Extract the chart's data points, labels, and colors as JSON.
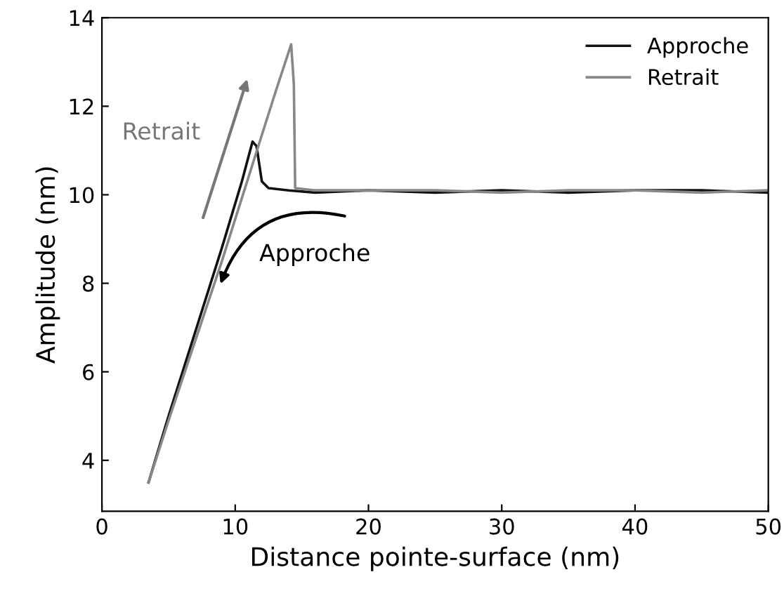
{
  "chart_data": {
    "type": "line",
    "xlabel": "Distance pointe-surface (nm)",
    "ylabel": "Amplitude (nm)",
    "xlim": [
      0,
      50
    ],
    "ylim": [
      2.85,
      14
    ],
    "xticks": [
      0,
      10,
      20,
      30,
      40,
      50
    ],
    "yticks": [
      4,
      6,
      8,
      10,
      12,
      14
    ],
    "grid": false,
    "legend": "top right",
    "line_style": "solid",
    "marker": "none",
    "series": [
      {
        "name": "Approche",
        "color": "#111111",
        "x": [
          3.5,
          5,
          7,
          9,
          10.5,
          11.3,
          11.6,
          12.0,
          12.5,
          14,
          16,
          20,
          25,
          30,
          35,
          40,
          45,
          50
        ],
        "values": [
          3.5,
          5.0,
          6.9,
          8.8,
          10.3,
          11.2,
          11.1,
          10.3,
          10.15,
          10.1,
          10.05,
          10.1,
          10.05,
          10.1,
          10.05,
          10.1,
          10.1,
          10.05
        ]
      },
      {
        "name": "Retrait",
        "color": "#888888",
        "x": [
          3.5,
          5,
          7,
          9,
          11,
          13,
          14.2,
          14.4,
          14.5,
          16,
          20,
          25,
          30,
          35,
          40,
          45,
          50
        ],
        "values": [
          3.5,
          4.9,
          6.7,
          8.5,
          10.4,
          12.3,
          13.4,
          12.5,
          10.15,
          10.1,
          10.1,
          10.1,
          10.05,
          10.1,
          10.1,
          10.05,
          10.1
        ]
      }
    ],
    "annotations": [
      "Retrait",
      {
        "text": "Approche",
        "x": 8.8,
        "y": 7.9
      }
    ]
  }
}
